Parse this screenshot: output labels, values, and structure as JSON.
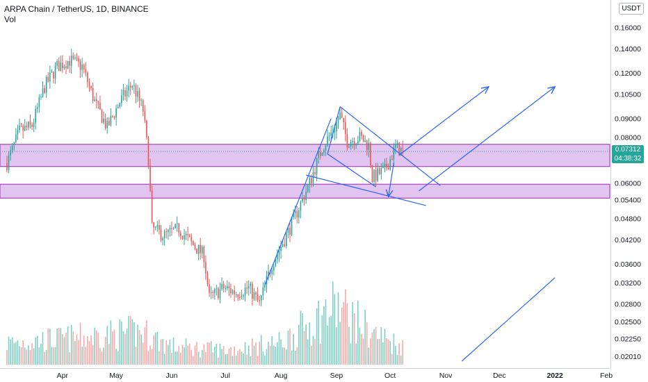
{
  "header": {
    "title": "ARPA Chain / TetherUS, 1D, BINANCE",
    "vol_label": "Vol"
  },
  "currency_button": "USDT",
  "price_tag": {
    "price": "0.07312",
    "countdown": "04:38:32"
  },
  "colors": {
    "up": "#26a69a",
    "down": "#ef5350",
    "zone_fill": "#e1c4ef",
    "zone_border": "#9c27b0",
    "drawing": "#2962ff",
    "vol_up": "#7fcfc4",
    "vol_down": "#f7a9a7"
  },
  "chart_data": {
    "type": "candlestick",
    "title": "ARPA Chain / TetherUS, 1D, BINANCE",
    "scale": "log",
    "ylim": [
      0.0195,
      0.19
    ],
    "y_ticks": [
      0.16,
      0.14,
      0.12,
      0.105,
      0.09,
      0.08,
      0.06,
      0.054,
      0.048,
      0.042,
      0.036,
      0.032,
      0.028,
      0.025,
      0.0225,
      0.0201
    ],
    "y_tick_labels": [
      "0.16000",
      "0.14000",
      "0.12000",
      "0.10500",
      "0.09000",
      "0.08000",
      "0.06000",
      "0.05400",
      "0.04800",
      "0.04200",
      "0.03600",
      "0.03200",
      "0.02800",
      "0.02500",
      "0.02250",
      "0.02010"
    ],
    "x_ticks": [
      "Apr",
      "May",
      "Jun",
      "Jul",
      "Aug",
      "Sep",
      "Oct",
      "Nov",
      "Dec",
      "2022",
      "Feb"
    ],
    "x_start": "2021-03-01",
    "x_end": "2022-02-01",
    "last_price": 0.07312,
    "support_zones": [
      {
        "top": 0.0765,
        "bottom": 0.0665
      },
      {
        "top": 0.0595,
        "bottom": 0.0545
      }
    ],
    "price_path": [
      [
        "2021-03-01",
        0.068
      ],
      [
        "2021-03-08",
        0.083
      ],
      [
        "2021-03-15",
        0.086
      ],
      [
        "2021-03-22",
        0.11
      ],
      [
        "2021-03-29",
        0.125
      ],
      [
        "2021-04-05",
        0.13
      ],
      [
        "2021-04-12",
        0.125
      ],
      [
        "2021-04-19",
        0.1
      ],
      [
        "2021-04-26",
        0.085
      ],
      [
        "2021-05-03",
        0.1
      ],
      [
        "2021-05-10",
        0.112
      ],
      [
        "2021-05-16",
        0.095
      ],
      [
        "2021-05-19",
        0.07
      ],
      [
        "2021-05-21",
        0.045
      ],
      [
        "2021-05-28",
        0.043
      ],
      [
        "2021-06-05",
        0.045
      ],
      [
        "2021-06-12",
        0.041
      ],
      [
        "2021-06-19",
        0.038
      ],
      [
        "2021-06-22",
        0.029
      ],
      [
        "2021-06-30",
        0.031
      ],
      [
        "2021-07-07",
        0.03
      ],
      [
        "2021-07-14",
        0.031
      ],
      [
        "2021-07-20",
        0.028
      ],
      [
        "2021-07-27",
        0.036
      ],
      [
        "2021-08-03",
        0.042
      ],
      [
        "2021-08-10",
        0.05
      ],
      [
        "2021-08-17",
        0.06
      ],
      [
        "2021-08-24",
        0.075
      ],
      [
        "2021-08-31",
        0.085
      ],
      [
        "2021-09-03",
        0.092
      ],
      [
        "2021-09-07",
        0.078
      ],
      [
        "2021-09-14",
        0.08
      ],
      [
        "2021-09-19",
        0.076
      ],
      [
        "2021-09-21",
        0.062
      ],
      [
        "2021-09-28",
        0.065
      ],
      [
        "2021-10-04",
        0.075
      ],
      [
        "2021-10-08",
        0.0731
      ]
    ],
    "volume_profile": [
      [
        "2021-03-01",
        0.3
      ],
      [
        "2021-04-01",
        0.35
      ],
      [
        "2021-05-15",
        0.45
      ],
      [
        "2021-06-01",
        0.25
      ],
      [
        "2021-07-01",
        0.2
      ],
      [
        "2021-08-01",
        0.3
      ],
      [
        "2021-09-01",
        0.8
      ],
      [
        "2021-09-20",
        0.45
      ],
      [
        "2021-10-08",
        0.25
      ]
    ],
    "drawings": [
      {
        "kind": "line",
        "from": [
          "2021-08-27",
          0.072
        ],
        "to": [
          "2021-09-03",
          0.097
        ]
      },
      {
        "kind": "line",
        "from": [
          "2021-08-27",
          0.072
        ],
        "to": [
          "2021-09-23",
          0.0585
        ]
      },
      {
        "kind": "line",
        "from": [
          "2021-09-03",
          0.097
        ],
        "to": [
          "2021-10-29",
          0.059
        ]
      },
      {
        "kind": "line",
        "from": [
          "2021-08-15",
          0.063
        ],
        "to": [
          "2021-10-21",
          0.052
        ]
      },
      {
        "kind": "line",
        "from": [
          "2021-07-23",
          0.0315
        ],
        "to": [
          "2021-08-29",
          0.09
        ]
      },
      {
        "kind": "arrow",
        "from": [
          "2021-10-06",
          0.0715
        ],
        "to": [
          "2021-11-25",
          0.11
        ]
      },
      {
        "kind": "arrow",
        "from": [
          "2021-10-17",
          0.057
        ],
        "to": [
          "2022-01-01",
          0.11
        ]
      },
      {
        "kind": "arrow",
        "from": [
          "2021-10-03",
          0.068
        ],
        "to": [
          "2021-09-30",
          0.055
        ]
      },
      {
        "kind": "line",
        "from": [
          "2021-11-10",
          0.0195
        ],
        "to": [
          "2022-01-01",
          0.033
        ]
      }
    ]
  }
}
